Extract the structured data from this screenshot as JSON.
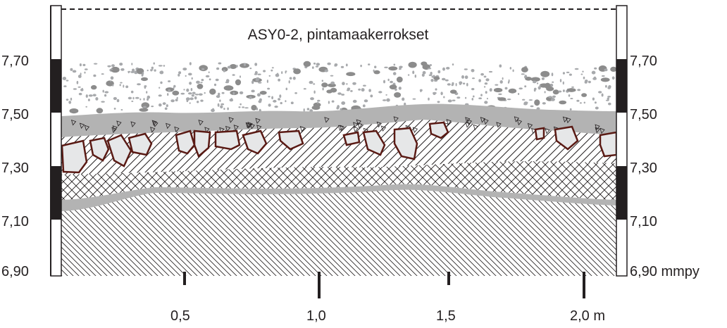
{
  "title": "ASY0-2, pintamaakerrokset",
  "left_scale": [
    "7,70",
    "7,50",
    "7,30",
    "7,10",
    "6,90"
  ],
  "right_scale": [
    "7,70",
    "7,50",
    "7,30",
    "7,10",
    "6,90 mmpy"
  ],
  "x_scale": [
    "0,5",
    "1,0",
    "1,5",
    "2,0 m"
  ],
  "layers": [
    {
      "name": "topsoil-gravel",
      "pattern": "dots-and-pebbles",
      "color": "#8c8c8c"
    },
    {
      "name": "grey-band",
      "pattern": "grey-with-gravel",
      "color": "#b3b3b3"
    },
    {
      "name": "diagonal-hatch-layer",
      "pattern": "diagonal-lines",
      "color": "#231f20"
    },
    {
      "name": "cross-hatch-layer",
      "pattern": "cross-hatch",
      "color": "#231f20"
    },
    {
      "name": "lower-grey-band",
      "pattern": "solid-grey",
      "color": "#b3b3b3"
    },
    {
      "name": "subsoil",
      "pattern": "fine-back-diagonal",
      "color": "#231f20"
    }
  ],
  "stone_color": "#5a1a14",
  "stone_fill": "#e6e7e8"
}
